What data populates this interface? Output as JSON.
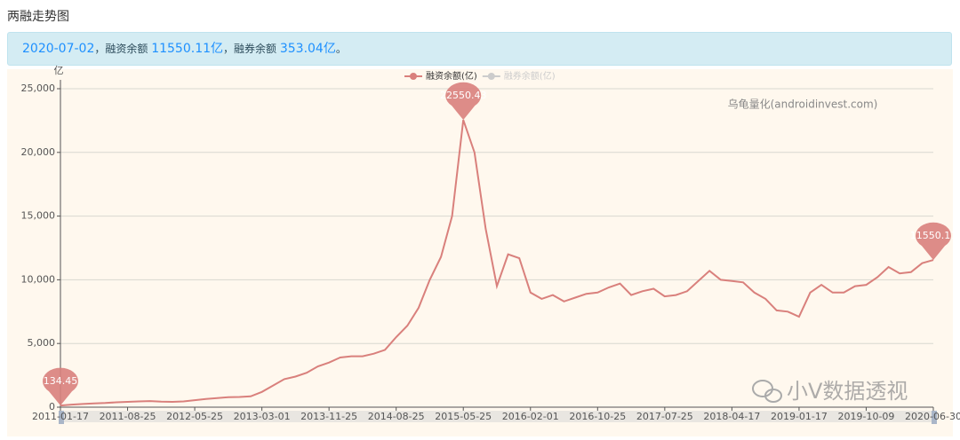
{
  "header": {
    "title": "两融走势图",
    "banner": [
      "2020-07-02",
      "，融资余额 ",
      "11550.11亿",
      "，融券余额 ",
      "353.04亿",
      "。"
    ]
  },
  "watermarks": [
    "乌龟量化(androidinvest.com)",
    "小V数据透视"
  ],
  "chart_data": {
    "type": "line",
    "y_unit": "亿",
    "categories": [
      "2011-01-17",
      null,
      null,
      null,
      null,
      null,
      "2011-08-25",
      null,
      null,
      null,
      null,
      null,
      "2012-05-25",
      null,
      null,
      null,
      null,
      null,
      "2013-03-01",
      null,
      null,
      null,
      null,
      null,
      "2013-11-25",
      null,
      null,
      null,
      null,
      null,
      "2014-08-25",
      null,
      null,
      null,
      null,
      null,
      "2015-05-25",
      null,
      null,
      null,
      null,
      null,
      "2016-02-01",
      null,
      null,
      null,
      null,
      null,
      "2016-10-25",
      null,
      null,
      null,
      null,
      null,
      "2017-07-25",
      null,
      null,
      null,
      null,
      null,
      "2018-04-17",
      null,
      null,
      null,
      null,
      null,
      "2019-01-17",
      null,
      null,
      null,
      null,
      null,
      "2019-10-09",
      null,
      null,
      null,
      null,
      null,
      "2020-06-30"
    ],
    "series": [
      {
        "name": "融资余额(亿)",
        "color": "#d9807c",
        "values": [
          134.45,
          200,
          250,
          300,
          330,
          380,
          420,
          450,
          480,
          430,
          420,
          450,
          550,
          650,
          720,
          780,
          800,
          850,
          1200,
          1700,
          2200,
          2400,
          2700,
          3200,
          3500,
          3900,
          4000,
          4000,
          4200,
          4500,
          5500,
          6400,
          7800,
          10000,
          11800,
          15000,
          22550.43,
          20000,
          14000,
          9500,
          12000,
          11700,
          9000,
          8500,
          8800,
          8300,
          8600,
          8900,
          9000,
          9400,
          9700,
          8800,
          9100,
          9300,
          8700,
          8800,
          9100,
          9900,
          10700,
          10000,
          9900,
          9800,
          9000,
          8500,
          7600,
          7500,
          7100,
          9000,
          9600,
          9000,
          9000,
          9500,
          9600,
          10200,
          11000,
          10500,
          10600,
          11300,
          11550.11
        ]
      }
    ],
    "hidden_series": [
      {
        "name": "融券余额(亿)",
        "color": "#cccccc"
      }
    ],
    "pin_markers": [
      "min",
      "max",
      "last"
    ],
    "ylim": [
      0,
      25000
    ],
    "yticks": [
      0,
      {
        "value": 5000,
        "label": "5,000"
      },
      {
        "value": 10000,
        "label": "10,000"
      },
      {
        "value": 15000,
        "label": "15,000"
      },
      {
        "value": 20000,
        "label": "20,000"
      },
      {
        "value": 25000,
        "label": "25,000"
      }
    ],
    "grid": true
  }
}
